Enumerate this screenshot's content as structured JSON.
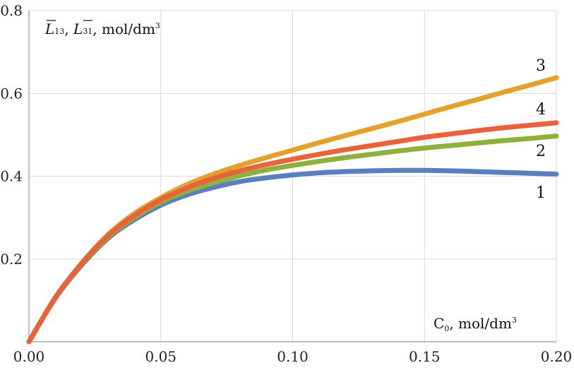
{
  "chart_data": {
    "type": "line",
    "ylabel_parts": [
      "L",
      "13",
      ", ",
      "L",
      "31",
      ",  mol/dm",
      "3"
    ],
    "xlabel_parts": [
      "C",
      "0",
      ",  mol/dm",
      "3"
    ],
    "xlim": [
      0,
      0.2
    ],
    "ylim": [
      0,
      0.8
    ],
    "x_ticks": [
      "0.00",
      "0.05",
      "0.10",
      "0.15",
      "0.20"
    ],
    "y_ticks": [
      "0.2",
      "0.4",
      "0.6",
      "0.8"
    ],
    "grid": true,
    "x": [
      0,
      0.01,
      0.02,
      0.03,
      0.04,
      0.05,
      0.06,
      0.07,
      0.08,
      0.09,
      0.1,
      0.11,
      0.12,
      0.13,
      0.14,
      0.15,
      0.16,
      0.17,
      0.18,
      0.19,
      0.2
    ],
    "series": [
      {
        "name": "1",
        "color": "#5a7fbf",
        "values": [
          0,
          0.105,
          0.185,
          0.25,
          0.295,
          0.33,
          0.355,
          0.373,
          0.387,
          0.396,
          0.403,
          0.408,
          0.411,
          0.413,
          0.414,
          0.414,
          0.413,
          0.411,
          0.409,
          0.407,
          0.405
        ]
      },
      {
        "name": "2",
        "color": "#8fb03a",
        "values": [
          0,
          0.106,
          0.187,
          0.253,
          0.3,
          0.337,
          0.364,
          0.384,
          0.401,
          0.415,
          0.426,
          0.436,
          0.445,
          0.453,
          0.461,
          0.468,
          0.474,
          0.48,
          0.486,
          0.491,
          0.497
        ]
      },
      {
        "name": "3",
        "color": "#e3a22c",
        "values": [
          0,
          0.107,
          0.19,
          0.259,
          0.31,
          0.348,
          0.38,
          0.405,
          0.426,
          0.445,
          0.463,
          0.481,
          0.498,
          0.515,
          0.532,
          0.55,
          0.568,
          0.585,
          0.603,
          0.62,
          0.638
        ]
      },
      {
        "name": "4",
        "color": "#e8623a",
        "values": [
          0,
          0.107,
          0.189,
          0.256,
          0.305,
          0.343,
          0.372,
          0.395,
          0.413,
          0.428,
          0.441,
          0.453,
          0.464,
          0.474,
          0.484,
          0.494,
          0.502,
          0.51,
          0.517,
          0.523,
          0.529
        ]
      }
    ]
  }
}
